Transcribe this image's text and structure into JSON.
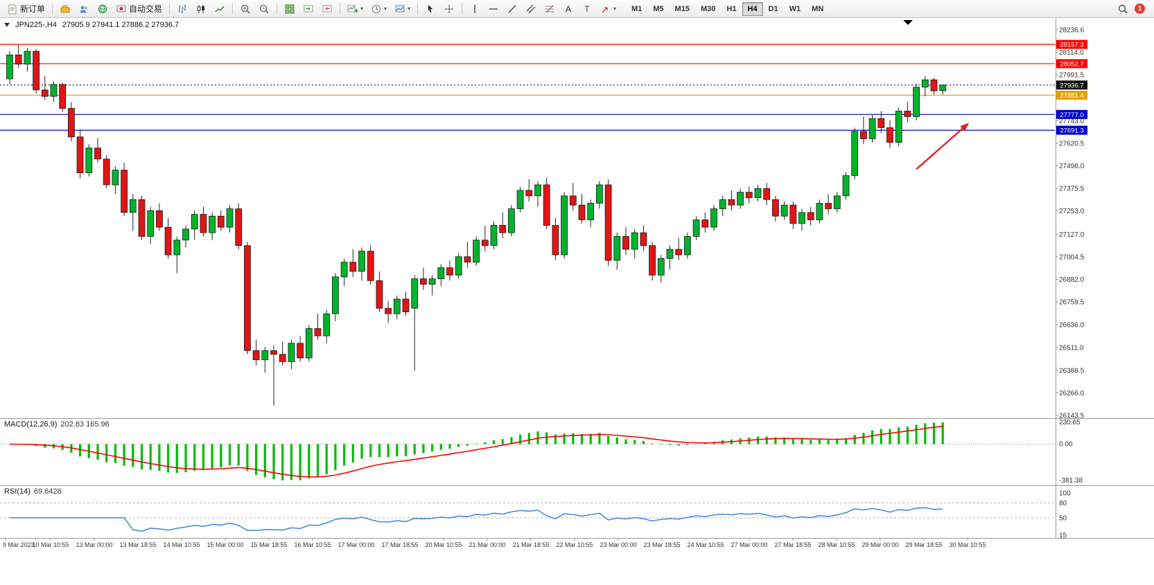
{
  "toolbar": {
    "new_order": "新订单",
    "auto_trading": "自动交易",
    "timeframes": [
      "M1",
      "M5",
      "M15",
      "M30",
      "H1",
      "H4",
      "D1",
      "W1",
      "MN"
    ],
    "active_timeframe": "H4",
    "notification_count": "1",
    "icon_names": [
      "new-order-icon",
      "market-watch-icon",
      "community-icon",
      "web-terminal-icon",
      "auto-trading-icon",
      "bar-chart-icon",
      "candlestick-icon",
      "line-chart-icon",
      "zoom-in-icon",
      "zoom-out-icon",
      "tile-windows-icon",
      "auto-scroll-icon",
      "chart-shift-icon",
      "new-chart-icon",
      "period-clock-icon",
      "template-icon",
      "cursor-icon",
      "crosshair-icon",
      "vertical-line-icon",
      "horizontal-line-icon",
      "trendline-icon",
      "channel-icon",
      "fibonacci-icon",
      "text-icon",
      "label-icon",
      "shapes-icon",
      "search-icon"
    ]
  },
  "title_bar": {
    "symbol_period": "JPN225-,H4",
    "ohlc": "27905.9 27941.1 27886.2 27936.7"
  },
  "chart_data": {
    "type": "candlestick",
    "symbol": "JPN225-",
    "timeframe": "H4",
    "current_ohlc": {
      "open": 27905.9,
      "high": 27941.1,
      "low": 27886.2,
      "close": 27936.7
    },
    "price_range": {
      "min": 26143.5,
      "max": 28236.6
    },
    "price_axis_ticks": [
      "28236.6",
      "28114.0",
      "27991.5",
      "27743.0",
      "27620.5",
      "27498.0",
      "27375.5",
      "27253.0",
      "27127.0",
      "27004.5",
      "26882.0",
      "26759.5",
      "26636.0",
      "26511.0",
      "26388.5",
      "26266.0",
      "26143.5"
    ],
    "levels": [
      {
        "price": 28157.3,
        "label": "28157.3",
        "color": "#ff0000",
        "style": "solid",
        "role": "resistance"
      },
      {
        "price": 28052.7,
        "label": "28052.7",
        "color": "#ff0000",
        "style": "solid",
        "role": "resistance"
      },
      {
        "price": 27936.7,
        "label": "27936.7",
        "color": "#111111",
        "style": "dotted",
        "role": "current-price"
      },
      {
        "price": 27881.4,
        "label": "27881.4",
        "color": "#e8a200",
        "style": "solid",
        "role": "level"
      },
      {
        "price": 27777.0,
        "label": "27777.0",
        "color": "#0000cc",
        "style": "solid",
        "role": "support"
      },
      {
        "price": 27691.3,
        "label": "27691.3",
        "color": "#0000cc",
        "style": "solid",
        "role": "support"
      }
    ],
    "candles": [
      [
        27970,
        28120,
        27940,
        28100
      ],
      [
        28100,
        28157,
        28030,
        28050
      ],
      [
        28050,
        28140,
        28010,
        28120
      ],
      [
        28120,
        28130,
        27890,
        27910
      ],
      [
        27910,
        27985,
        27855,
        27875
      ],
      [
        27875,
        27955,
        27845,
        27940
      ],
      [
        27940,
        27950,
        27790,
        27810
      ],
      [
        27810,
        27845,
        27630,
        27655
      ],
      [
        27655,
        27695,
        27430,
        27460
      ],
      [
        27460,
        27615,
        27440,
        27595
      ],
      [
        27595,
        27650,
        27515,
        27535
      ],
      [
        27535,
        27555,
        27375,
        27395
      ],
      [
        27395,
        27495,
        27345,
        27475
      ],
      [
        27475,
        27515,
        27225,
        27245
      ],
      [
        27245,
        27345,
        27145,
        27315
      ],
      [
        27315,
        27335,
        27095,
        27115
      ],
      [
        27115,
        27275,
        27075,
        27255
      ],
      [
        27255,
        27295,
        27145,
        27165
      ],
      [
        27165,
        27215,
        26995,
        27015
      ],
      [
        27015,
        27115,
        26915,
        27095
      ],
      [
        27095,
        27175,
        27055,
        27155
      ],
      [
        27155,
        27255,
        27095,
        27235
      ],
      [
        27235,
        27275,
        27115,
        27135
      ],
      [
        27135,
        27245,
        27095,
        27225
      ],
      [
        27225,
        27255,
        27145,
        27165
      ],
      [
        27165,
        27285,
        27135,
        27265
      ],
      [
        27265,
        27295,
        27045,
        27065
      ],
      [
        27065,
        27085,
        26475,
        26495
      ],
      [
        26495,
        26555,
        26415,
        26445
      ],
      [
        26445,
        26515,
        26375,
        26495
      ],
      [
        26495,
        26525,
        26195,
        26475
      ],
      [
        26475,
        26545,
        26415,
        26435
      ],
      [
        26435,
        26555,
        26395,
        26535
      ],
      [
        26535,
        26575,
        26435,
        26455
      ],
      [
        26455,
        26635,
        26435,
        26615
      ],
      [
        26615,
        26695,
        26555,
        26575
      ],
      [
        26575,
        26715,
        26535,
        26695
      ],
      [
        26695,
        26915,
        26655,
        26895
      ],
      [
        26895,
        26995,
        26845,
        26975
      ],
      [
        26975,
        27045,
        26895,
        26925
      ],
      [
        26925,
        27055,
        26875,
        27035
      ],
      [
        27035,
        27065,
        26855,
        26875
      ],
      [
        26875,
        26925,
        26705,
        26725
      ],
      [
        26725,
        26765,
        26645,
        26695
      ],
      [
        26695,
        26795,
        26665,
        26775
      ],
      [
        26775,
        26815,
        26685,
        26705
      ],
      [
        26725,
        26905,
        26385,
        26885
      ],
      [
        26885,
        26945,
        26825,
        26855
      ],
      [
        26855,
        26905,
        26795,
        26885
      ],
      [
        26885,
        26965,
        26845,
        26945
      ],
      [
        26945,
        26985,
        26875,
        26905
      ],
      [
        26905,
        27025,
        26885,
        27005
      ],
      [
        27005,
        27085,
        26945,
        26975
      ],
      [
        26975,
        27115,
        26955,
        27095
      ],
      [
        27095,
        27175,
        27035,
        27065
      ],
      [
        27065,
        27195,
        27045,
        27175
      ],
      [
        27175,
        27245,
        27105,
        27135
      ],
      [
        27135,
        27285,
        27115,
        27265
      ],
      [
        27265,
        27385,
        27245,
        27365
      ],
      [
        27365,
        27425,
        27305,
        27335
      ],
      [
        27335,
        27415,
        27275,
        27395
      ],
      [
        27395,
        27435,
        27155,
        27175
      ],
      [
        27175,
        27215,
        26985,
        27015
      ],
      [
        27015,
        27355,
        26995,
        27335
      ],
      [
        27335,
        27405,
        27255,
        27285
      ],
      [
        27285,
        27345,
        27185,
        27205
      ],
      [
        27205,
        27315,
        27165,
        27295
      ],
      [
        27295,
        27415,
        27265,
        27395
      ],
      [
        27395,
        27425,
        26955,
        26985
      ],
      [
        26985,
        27135,
        26935,
        27115
      ],
      [
        27115,
        27165,
        27015,
        27045
      ],
      [
        27045,
        27155,
        26995,
        27135
      ],
      [
        27135,
        27175,
        27035,
        27065
      ],
      [
        27065,
        27085,
        26875,
        26905
      ],
      [
        26905,
        27015,
        26865,
        26995
      ],
      [
        26995,
        27065,
        26935,
        27045
      ],
      [
        27045,
        27105,
        26985,
        27015
      ],
      [
        27015,
        27135,
        26995,
        27115
      ],
      [
        27115,
        27225,
        27095,
        27205
      ],
      [
        27205,
        27245,
        27135,
        27165
      ],
      [
        27165,
        27285,
        27145,
        27265
      ],
      [
        27265,
        27335,
        27225,
        27315
      ],
      [
        27315,
        27365,
        27255,
        27285
      ],
      [
        27285,
        27375,
        27265,
        27355
      ],
      [
        27355,
        27385,
        27295,
        27325
      ],
      [
        27325,
        27395,
        27305,
        27375
      ],
      [
        27375,
        27405,
        27285,
        27315
      ],
      [
        27315,
        27335,
        27195,
        27225
      ],
      [
        27225,
        27305,
        27205,
        27285
      ],
      [
        27285,
        27305,
        27155,
        27185
      ],
      [
        27185,
        27265,
        27145,
        27245
      ],
      [
        27245,
        27275,
        27175,
        27205
      ],
      [
        27205,
        27315,
        27185,
        27295
      ],
      [
        27295,
        27345,
        27235,
        27265
      ],
      [
        27265,
        27355,
        27245,
        27335
      ],
      [
        27335,
        27465,
        27315,
        27445
      ],
      [
        27445,
        27705,
        27425,
        27685
      ],
      [
        27685,
        27765,
        27615,
        27645
      ],
      [
        27645,
        27775,
        27625,
        27755
      ],
      [
        27755,
        27795,
        27675,
        27705
      ],
      [
        27705,
        27745,
        27595,
        27625
      ],
      [
        27625,
        27815,
        27605,
        27795
      ],
      [
        27795,
        27845,
        27735,
        27765
      ],
      [
        27765,
        27945,
        27745,
        27925
      ],
      [
        27925,
        27985,
        27875,
        27965
      ],
      [
        27965,
        27975,
        27885,
        27905
      ],
      [
        27905.9,
        27941.1,
        27886.2,
        27936.7
      ]
    ],
    "colors": {
      "up_fill": "#00b32c",
      "down_fill": "#e01515",
      "wick": "#222222"
    },
    "annotation": {
      "type": "arrow",
      "color": "#e02020",
      "tail": {
        "bar": 103,
        "price": 27480
      },
      "head": {
        "bar": 109,
        "price": 27732
      }
    },
    "indicators": {
      "macd": {
        "label": "MACD(12,26,9)",
        "values": "202.83 165.96",
        "axis_labels": [
          "230.65",
          "0.00",
          "-381.38"
        ],
        "histogram_color": "#00bb00",
        "signal_color": "#ff0000"
      },
      "rsi": {
        "label": "RSI(14)",
        "value": "69.6426",
        "axis_labels": [
          "100",
          "80",
          "50",
          "15"
        ],
        "dashed_levels": [
          80,
          50
        ],
        "line_color": "#3d85e0",
        "scale_min": 15,
        "scale_max": 100
      }
    },
    "time_labels": [
      "9 Mar 2023",
      "10 Mar 10:55",
      "13 Mar 00:00",
      "13 Mar 18:55",
      "14 Mar 10:55",
      "15 Mar 00:00",
      "15 Mar 18:55",
      "16 Mar 10:55",
      "17 Mar 00:00",
      "17 Mar 18:55",
      "20 Mar 10:55",
      "21 Mar 00:00",
      "21 Mar 18:55",
      "22 Mar 10:55",
      "23 Mar 00:00",
      "23 Mar 18:55",
      "24 Mar 10:55",
      "27 Mar 00:00",
      "27 Mar 18:55",
      "28 Mar 10:55",
      "29 Mar 00:00",
      "29 Mar 18:55",
      "30 Mar 10:55"
    ]
  }
}
